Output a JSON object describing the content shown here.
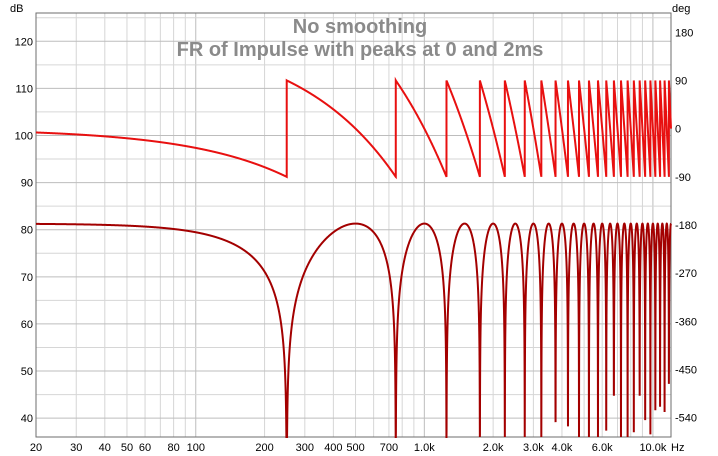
{
  "chart_data": {
    "type": "line",
    "title": "No smoothing",
    "subtitle": "FR of Impulse with peaks at 0 and 2ms",
    "xlabel": "Hz",
    "ylabel": "dB",
    "y2label": "deg",
    "xscale": "log",
    "xlim": [
      20,
      12000
    ],
    "ylim": [
      36,
      126
    ],
    "y2lim": [
      -576,
      216
    ],
    "grid": true,
    "x_ticks": [
      "20",
      "30",
      "40",
      "50",
      "60",
      "80",
      "100",
      "200",
      "300",
      "400",
      "500",
      "700",
      "1.0k",
      "2.0k",
      "3.0k",
      "4.0k",
      "6.0k",
      "10.0k"
    ],
    "x_tick_values": [
      20,
      30,
      40,
      50,
      60,
      80,
      100,
      200,
      300,
      400,
      500,
      700,
      1000,
      2000,
      3000,
      4000,
      6000,
      10000
    ],
    "y_ticks": [
      "120",
      "110",
      "100",
      "90",
      "80",
      "70",
      "60",
      "50",
      "40"
    ],
    "y_tick_values": [
      120,
      110,
      100,
      90,
      80,
      70,
      60,
      50,
      40
    ],
    "y2_ticks": [
      "180",
      "90",
      "0",
      "-90",
      "-180",
      "-270",
      "-360",
      "-450",
      "-540"
    ],
    "y2_tick_values": [
      180,
      90,
      0,
      -90,
      -180,
      -270,
      -360,
      -450,
      -540
    ],
    "series": [
      {
        "kind": "magnitude",
        "axis": "left",
        "color": "#a30000",
        "model": "two equal impulses 2 ms apart",
        "delay_ms": 2,
        "peak_db": 81.3,
        "notch_frequencies_hz": [
          250,
          750,
          1250,
          1750,
          2250,
          2750,
          3250,
          3750,
          4250,
          4750,
          5250,
          5750,
          6250,
          6750,
          7250,
          7750,
          8250,
          8750,
          9250,
          9750,
          10250,
          10750,
          11250,
          11750
        ],
        "sample_points": [
          {
            "x": 20,
            "y": 81.2
          },
          {
            "x": 100,
            "y": 79.9
          },
          {
            "x": 200,
            "y": 72.1
          },
          {
            "x": 250,
            "y": 36
          },
          {
            "x": 500,
            "y": 81.3
          },
          {
            "x": 750,
            "y": 36
          },
          {
            "x": 1000,
            "y": 81.3
          }
        ]
      },
      {
        "kind": "phase",
        "axis": "right",
        "color": "#e81010",
        "model": "sawtooth phase wrapping between -90 and +90 deg",
        "period_hz": 500,
        "sample_points": [
          {
            "x": 20,
            "y": -3.6
          },
          {
            "x": 100,
            "y": -18
          },
          {
            "x": 249,
            "y": -89.6
          },
          {
            "x": 251,
            "y": 89.6
          },
          {
            "x": 500,
            "y": 0
          },
          {
            "x": 749,
            "y": -89.6
          },
          {
            "x": 751,
            "y": 89.6
          }
        ]
      }
    ]
  }
}
